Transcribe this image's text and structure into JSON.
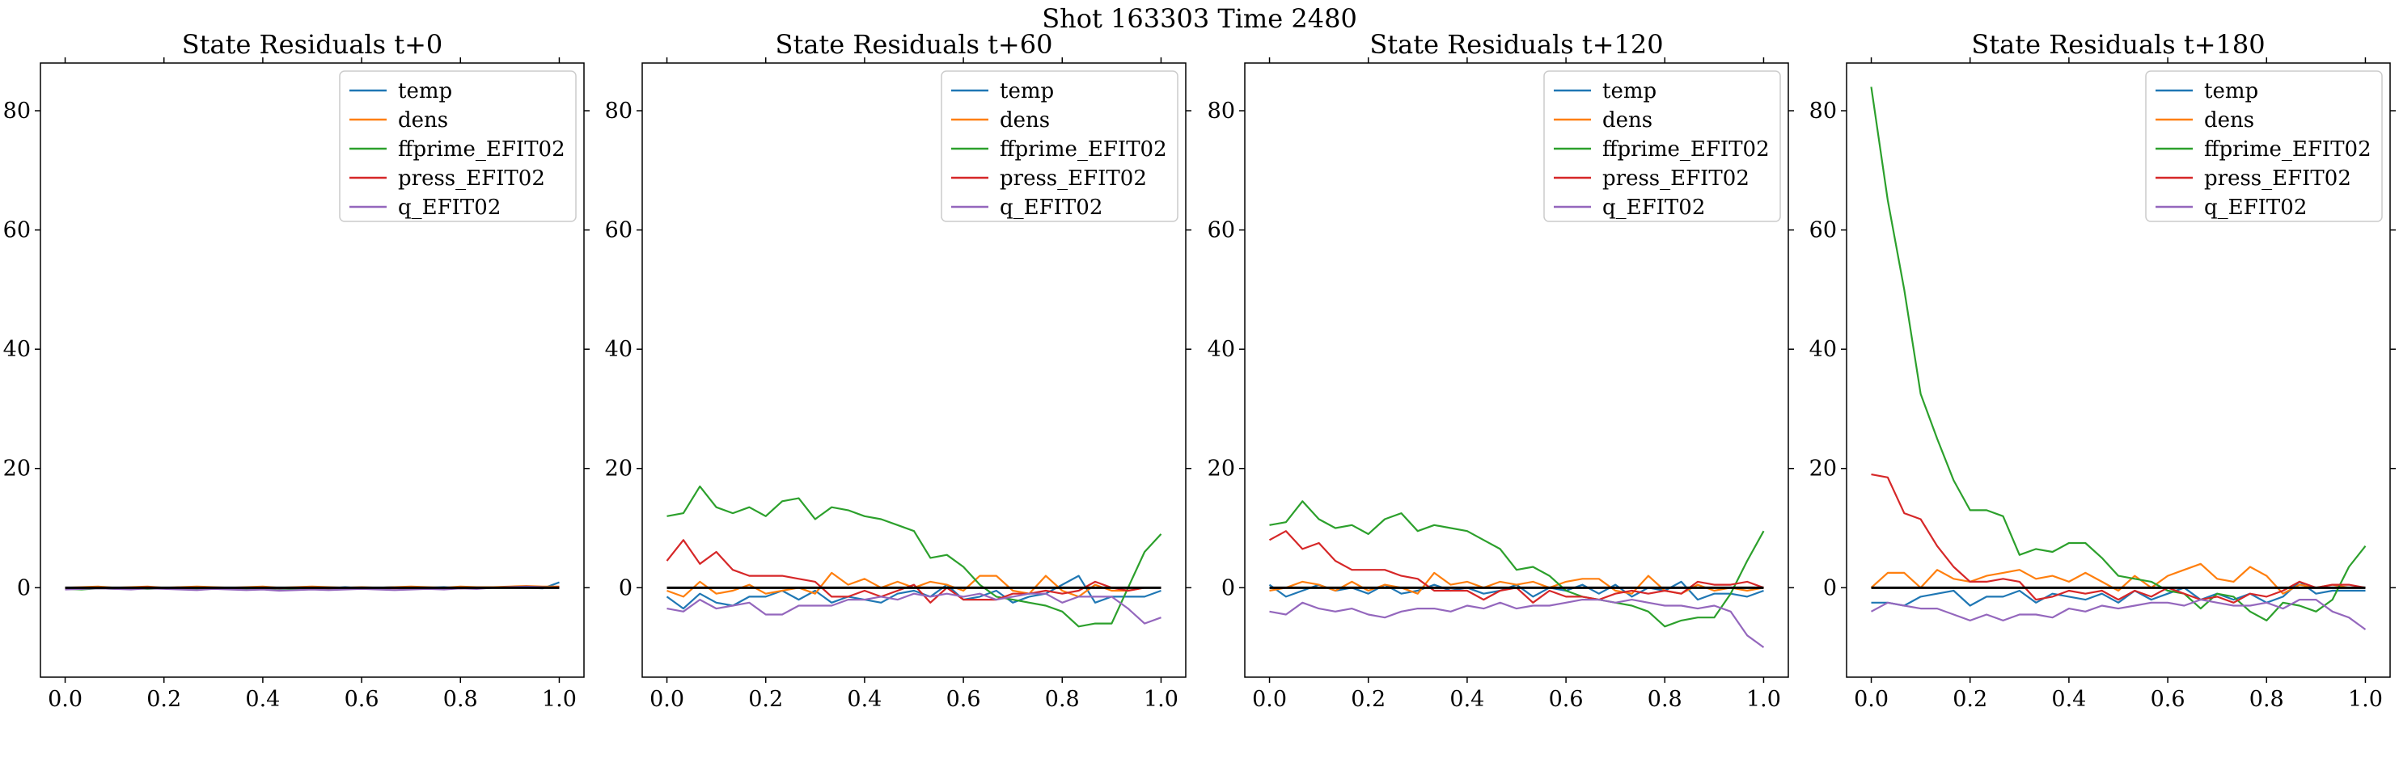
{
  "figure": {
    "suptitle": "Shot 163303   Time 2480"
  },
  "chart_data": [
    {
      "type": "line",
      "title": "State Residuals t+0",
      "xlim": [
        -0.05,
        1.05
      ],
      "ylim": [
        -15,
        88
      ],
      "xticks": [
        "0.0",
        "0.2",
        "0.4",
        "0.6",
        "0.8",
        "1.0"
      ],
      "yticks": [
        "0",
        "20",
        "40",
        "60",
        "80"
      ],
      "legend_position": "top-right",
      "x": [
        0.0,
        0.0333,
        0.0667,
        0.1,
        0.1333,
        0.1667,
        0.2,
        0.2333,
        0.2667,
        0.3,
        0.3333,
        0.3667,
        0.4,
        0.4333,
        0.4667,
        0.5,
        0.5333,
        0.5667,
        0.6,
        0.6333,
        0.6667,
        0.7,
        0.7333,
        0.7667,
        0.8,
        0.8333,
        0.8667,
        0.9,
        0.9333,
        0.9667,
        1.0
      ],
      "series": [
        {
          "name": "temp",
          "values": [
            -0.1,
            -0.2,
            0.0,
            -0.1,
            -0.2,
            0.0,
            -0.1,
            0.1,
            -0.1,
            0.0,
            -0.2,
            -0.1,
            0.0,
            -0.2,
            -0.1,
            0.0,
            -0.1,
            0.1,
            -0.1,
            0.0,
            0.1,
            -0.1,
            0.0,
            0.1,
            -0.1,
            0.0,
            0.1,
            0.1,
            0.0,
            -0.1,
            0.9
          ]
        },
        {
          "name": "dens",
          "values": [
            0.0,
            0.1,
            0.2,
            0.0,
            0.1,
            0.2,
            0.0,
            0.1,
            0.2,
            0.1,
            0.0,
            0.1,
            0.2,
            0.0,
            0.1,
            0.2,
            0.1,
            0.0,
            0.1,
            0.0,
            0.1,
            0.2,
            0.1,
            0.0,
            0.2,
            0.1,
            0.1,
            0.2,
            0.3,
            0.2,
            0.2
          ]
        },
        {
          "name": "ffprime_EFIT02",
          "values": [
            -0.2,
            -0.3,
            -0.1,
            -0.2,
            -0.1,
            -0.2,
            -0.1,
            0.0,
            -0.2,
            -0.1,
            -0.2,
            -0.3,
            -0.2,
            -0.1,
            -0.2,
            -0.1,
            -0.2,
            -0.1,
            -0.2,
            -0.1,
            0.0,
            -0.1,
            -0.1,
            -0.2,
            0.0,
            -0.1,
            0.0,
            0.1,
            0.0,
            0.1,
            0.0
          ]
        },
        {
          "name": "press_EFIT02",
          "values": [
            -0.1,
            0.0,
            0.0,
            -0.1,
            0.0,
            0.1,
            0.0,
            -0.1,
            0.0,
            0.0,
            -0.1,
            0.0,
            0.0,
            -0.1,
            0.0,
            0.0,
            -0.1,
            0.0,
            0.0,
            0.0,
            -0.1,
            0.0,
            0.0,
            0.0,
            -0.1,
            0.0,
            0.0,
            0.1,
            0.0,
            0.0,
            0.1
          ]
        },
        {
          "name": "q_EFIT02",
          "values": [
            -0.3,
            -0.2,
            -0.1,
            -0.2,
            -0.3,
            -0.1,
            -0.2,
            -0.3,
            -0.4,
            -0.2,
            -0.3,
            -0.4,
            -0.3,
            -0.5,
            -0.4,
            -0.3,
            -0.4,
            -0.3,
            -0.2,
            -0.3,
            -0.4,
            -0.3,
            -0.2,
            -0.3,
            -0.1,
            -0.2,
            0.0,
            0.1,
            0.2,
            0.1,
            0.0
          ]
        }
      ]
    },
    {
      "type": "line",
      "title": "State Residuals t+60",
      "xlim": [
        -0.05,
        1.05
      ],
      "ylim": [
        -15,
        88
      ],
      "xticks": [
        "0.0",
        "0.2",
        "0.4",
        "0.6",
        "0.8",
        "1.0"
      ],
      "yticks": [
        "0",
        "20",
        "40",
        "60",
        "80"
      ],
      "legend_position": "top-right",
      "x": [
        0.0,
        0.0333,
        0.0667,
        0.1,
        0.1333,
        0.1667,
        0.2,
        0.2333,
        0.2667,
        0.3,
        0.3333,
        0.3667,
        0.4,
        0.4333,
        0.4667,
        0.5,
        0.5333,
        0.5667,
        0.6,
        0.6333,
        0.6667,
        0.7,
        0.7333,
        0.7667,
        0.8,
        0.8333,
        0.8667,
        0.9,
        0.9333,
        0.9667,
        1.0
      ],
      "series": [
        {
          "name": "temp",
          "values": [
            -1.5,
            -3.5,
            -1.0,
            -2.5,
            -3.0,
            -1.5,
            -1.5,
            -0.5,
            -2.0,
            -0.5,
            -2.5,
            -1.5,
            -2.0,
            -2.5,
            -1.0,
            -0.5,
            -1.5,
            0.5,
            -2.0,
            -1.5,
            -0.5,
            -2.5,
            -1.5,
            -1.0,
            0.5,
            2.0,
            -2.5,
            -1.5,
            -1.5,
            -1.5,
            -0.5
          ]
        },
        {
          "name": "dens",
          "values": [
            -0.5,
            -1.5,
            1.0,
            -1.0,
            -0.5,
            0.5,
            -1.0,
            -0.5,
            0.0,
            -1.0,
            2.5,
            0.5,
            1.5,
            0.0,
            1.0,
            0.0,
            1.0,
            0.5,
            -0.5,
            2.0,
            2.0,
            -0.5,
            -1.0,
            2.0,
            -0.5,
            -1.5,
            0.5,
            -0.5,
            -0.5,
            0.0,
            0.0
          ]
        },
        {
          "name": "ffprime_EFIT02",
          "values": [
            12.0,
            12.5,
            17.0,
            13.5,
            12.5,
            13.5,
            12.0,
            14.5,
            15.0,
            11.5,
            13.5,
            13.0,
            12.0,
            11.5,
            10.5,
            9.5,
            5.0,
            5.5,
            3.5,
            0.5,
            -1.5,
            -2.0,
            -2.5,
            -3.0,
            -4.0,
            -6.5,
            -6.0,
            -6.0,
            0.0,
            6.0,
            9.0
          ]
        },
        {
          "name": "press_EFIT02",
          "values": [
            4.5,
            8.0,
            4.0,
            6.0,
            3.0,
            2.0,
            2.0,
            2.0,
            1.5,
            1.0,
            -1.5,
            -1.5,
            -0.5,
            -1.5,
            -0.5,
            0.5,
            -2.5,
            0.0,
            -2.0,
            -2.0,
            -2.0,
            -1.0,
            -1.0,
            -0.5,
            -1.0,
            -0.5,
            1.0,
            0.0,
            -0.5,
            0.0,
            0.0
          ]
        },
        {
          "name": "q_EFIT02",
          "values": [
            -3.5,
            -4.0,
            -2.0,
            -3.5,
            -3.0,
            -2.5,
            -4.5,
            -4.5,
            -3.0,
            -3.0,
            -3.0,
            -2.0,
            -2.0,
            -1.5,
            -2.0,
            -1.0,
            -1.5,
            -1.0,
            -1.5,
            -1.0,
            -2.0,
            -1.5,
            -1.0,
            -1.0,
            -2.5,
            -1.5,
            -1.5,
            -1.5,
            -3.5,
            -6.0,
            -5.0
          ]
        }
      ]
    },
    {
      "type": "line",
      "title": "State Residuals t+120",
      "xlim": [
        -0.05,
        1.05
      ],
      "ylim": [
        -15,
        88
      ],
      "xticks": [
        "0.0",
        "0.2",
        "0.4",
        "0.6",
        "0.8",
        "1.0"
      ],
      "yticks": [
        "0",
        "20",
        "40",
        "60",
        "80"
      ],
      "legend_position": "top-right",
      "x": [
        0.0,
        0.0333,
        0.0667,
        0.1,
        0.1333,
        0.1667,
        0.2,
        0.2333,
        0.2667,
        0.3,
        0.3333,
        0.3667,
        0.4,
        0.4333,
        0.4667,
        0.5,
        0.5333,
        0.5667,
        0.6,
        0.6333,
        0.6667,
        0.7,
        0.7333,
        0.7667,
        0.8,
        0.8333,
        0.8667,
        0.9,
        0.9333,
        0.9667,
        1.0
      ],
      "series": [
        {
          "name": "temp",
          "values": [
            0.5,
            -1.5,
            -0.5,
            0.5,
            -0.5,
            0.0,
            -1.0,
            0.5,
            -1.0,
            -0.5,
            0.5,
            -0.5,
            0.0,
            -1.0,
            -0.5,
            0.5,
            -1.5,
            0.0,
            -0.5,
            0.5,
            -1.0,
            0.5,
            -1.5,
            0.0,
            -0.5,
            1.0,
            -2.0,
            -1.0,
            -1.0,
            -1.5,
            -0.5
          ]
        },
        {
          "name": "dens",
          "values": [
            -0.5,
            0.0,
            1.0,
            0.5,
            -0.5,
            1.0,
            -0.5,
            0.5,
            0.0,
            -1.0,
            2.5,
            0.5,
            1.0,
            0.0,
            1.0,
            0.5,
            1.0,
            0.0,
            1.0,
            1.5,
            1.5,
            -0.5,
            -1.0,
            2.0,
            -0.5,
            -1.0,
            0.5,
            -0.5,
            0.0,
            -0.5,
            0.0
          ]
        },
        {
          "name": "ffprime_EFIT02",
          "values": [
            10.5,
            11.0,
            14.5,
            11.5,
            10.0,
            10.5,
            9.0,
            11.5,
            12.5,
            9.5,
            10.5,
            10.0,
            9.5,
            8.0,
            6.5,
            3.0,
            3.5,
            2.0,
            -0.5,
            -1.5,
            -2.0,
            -2.5,
            -3.0,
            -4.0,
            -6.5,
            -5.5,
            -5.0,
            -5.0,
            -1.0,
            4.5,
            9.5
          ]
        },
        {
          "name": "press_EFIT02",
          "values": [
            8.0,
            9.5,
            6.5,
            7.5,
            4.5,
            3.0,
            3.0,
            3.0,
            2.0,
            1.5,
            -0.5,
            -0.5,
            -0.5,
            -2.0,
            -0.5,
            0.0,
            -2.5,
            -0.5,
            -1.5,
            -1.5,
            -2.0,
            -1.0,
            -0.5,
            -1.0,
            -0.5,
            -1.0,
            1.0,
            0.5,
            0.5,
            1.0,
            0.0
          ]
        },
        {
          "name": "q_EFIT02",
          "values": [
            -4.0,
            -4.5,
            -2.5,
            -3.5,
            -4.0,
            -3.5,
            -4.5,
            -5.0,
            -4.0,
            -3.5,
            -3.5,
            -4.0,
            -3.0,
            -3.5,
            -2.5,
            -3.5,
            -3.0,
            -3.0,
            -2.5,
            -2.0,
            -2.0,
            -2.5,
            -2.0,
            -2.5,
            -3.0,
            -3.0,
            -3.5,
            -3.0,
            -4.0,
            -8.0,
            -10.0
          ]
        }
      ]
    },
    {
      "type": "line",
      "title": "State Residuals t+180",
      "xlim": [
        -0.05,
        1.05
      ],
      "ylim": [
        -15,
        88
      ],
      "xticks": [
        "0.0",
        "0.2",
        "0.4",
        "0.6",
        "0.8",
        "1.0"
      ],
      "yticks": [
        "0",
        "20",
        "40",
        "60",
        "80"
      ],
      "legend_position": "top-right",
      "x": [
        0.0,
        0.0333,
        0.0667,
        0.1,
        0.1333,
        0.1667,
        0.2,
        0.2333,
        0.2667,
        0.3,
        0.3333,
        0.3667,
        0.4,
        0.4333,
        0.4667,
        0.5,
        0.5333,
        0.5667,
        0.6,
        0.6333,
        0.6667,
        0.7,
        0.7333,
        0.7667,
        0.8,
        0.8333,
        0.8667,
        0.9,
        0.9333,
        0.9667,
        1.0
      ],
      "series": [
        {
          "name": "temp",
          "values": [
            -2.5,
            -2.5,
            -3.0,
            -1.5,
            -1.0,
            -0.5,
            -3.0,
            -1.5,
            -1.5,
            -0.5,
            -2.5,
            -1.0,
            -1.5,
            -2.0,
            -1.0,
            -2.5,
            -0.5,
            -2.0,
            -1.0,
            0.0,
            -2.0,
            -1.0,
            -2.0,
            -1.0,
            -2.5,
            -1.5,
            1.0,
            -1.0,
            -0.5,
            -0.5,
            -0.5
          ]
        },
        {
          "name": "dens",
          "values": [
            0.0,
            2.5,
            2.5,
            0.0,
            3.0,
            1.5,
            1.0,
            2.0,
            2.5,
            3.0,
            1.5,
            2.0,
            1.0,
            2.5,
            1.0,
            -0.5,
            2.0,
            0.0,
            2.0,
            3.0,
            4.0,
            1.5,
            1.0,
            3.5,
            2.0,
            -1.0,
            0.5,
            0.0,
            0.5,
            0.0,
            0.0
          ]
        },
        {
          "name": "ffprime_EFIT02",
          "values": [
            84.0,
            65.0,
            50.0,
            32.5,
            25.0,
            18.0,
            13.0,
            13.0,
            12.0,
            5.5,
            6.5,
            6.0,
            7.5,
            7.5,
            5.0,
            2.0,
            1.5,
            1.0,
            -0.5,
            -1.0,
            -3.5,
            -1.0,
            -1.5,
            -4.0,
            -5.5,
            -2.5,
            -3.0,
            -4.0,
            -2.0,
            3.5,
            7.0
          ]
        },
        {
          "name": "press_EFIT02",
          "values": [
            19.0,
            18.5,
            12.5,
            11.5,
            7.0,
            3.5,
            1.0,
            1.0,
            1.5,
            1.0,
            -2.0,
            -1.5,
            -0.5,
            -1.0,
            -0.5,
            -2.0,
            -0.5,
            -1.5,
            0.0,
            -1.0,
            -2.0,
            -1.5,
            -2.5,
            -1.0,
            -1.5,
            -0.5,
            1.0,
            0.0,
            0.5,
            0.5,
            0.0
          ]
        },
        {
          "name": "q_EFIT02",
          "values": [
            -4.0,
            -2.5,
            -3.0,
            -3.5,
            -3.5,
            -4.5,
            -5.5,
            -4.5,
            -5.5,
            -4.5,
            -4.5,
            -5.0,
            -3.5,
            -4.0,
            -3.0,
            -3.5,
            -3.0,
            -2.5,
            -2.5,
            -3.0,
            -2.0,
            -2.5,
            -3.0,
            -3.0,
            -2.5,
            -3.5,
            -2.0,
            -2.0,
            -4.0,
            -5.0,
            -7.0
          ]
        }
      ]
    }
  ],
  "colors": {
    "temp": "#1f77b4",
    "dens": "#ff7f0e",
    "ffprime_EFIT02": "#2ca02c",
    "press_EFIT02": "#d62728",
    "q_EFIT02": "#9467bd",
    "zero_line": "#000000"
  }
}
